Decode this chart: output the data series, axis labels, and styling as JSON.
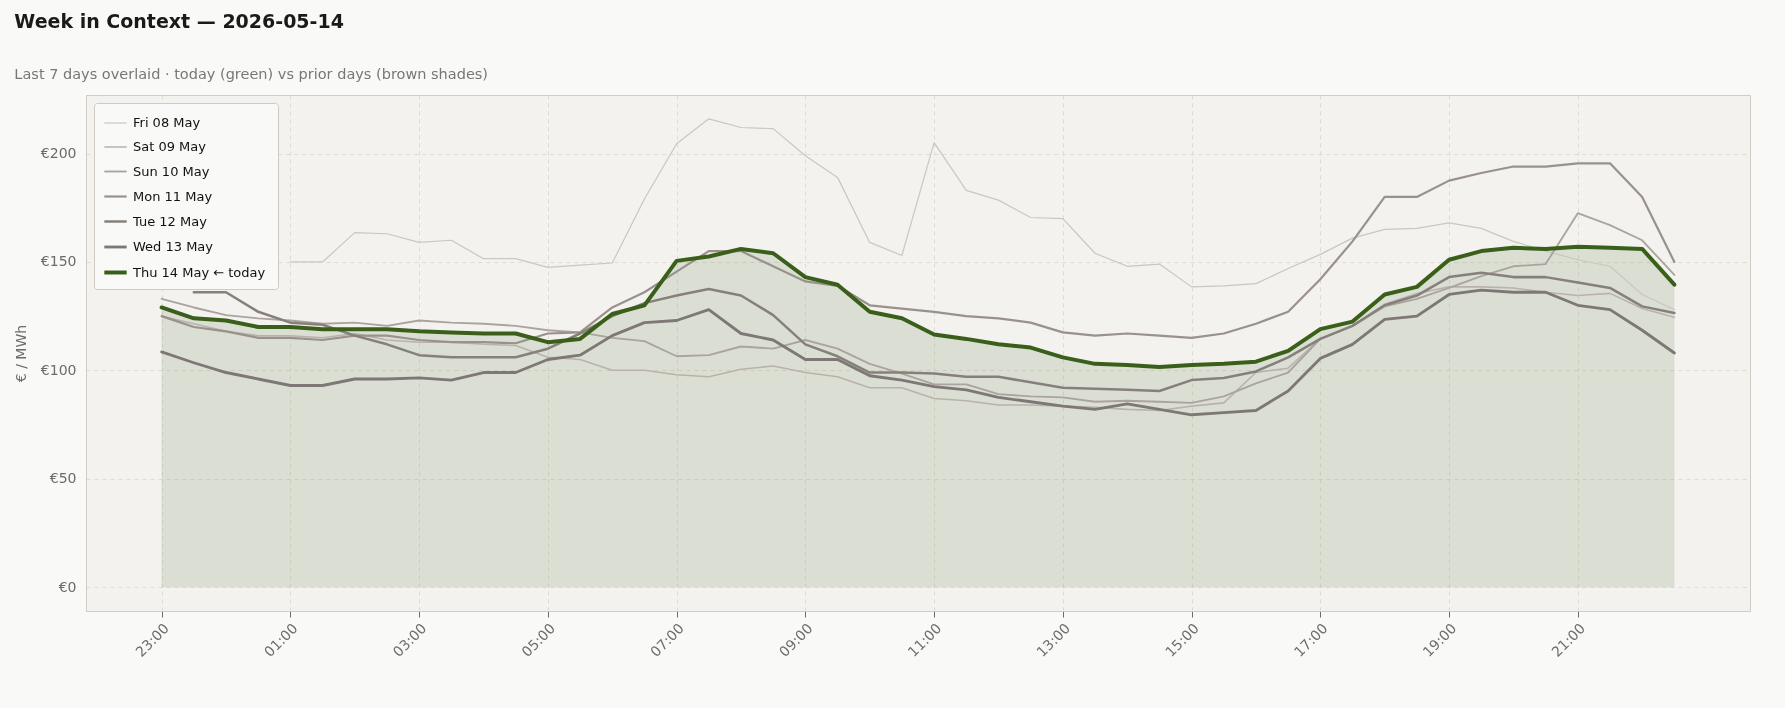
{
  "chart_data": {
    "type": "line",
    "title": "Week in Context — 2026-05-14",
    "subtitle": "Last 7 days overlaid  ·  today (green) vs prior days (brown shades)",
    "ylabel": "€ / MWh",
    "categories": [
      "23:00",
      null,
      null,
      null,
      "01:00",
      null,
      null,
      null,
      "03:00",
      null,
      null,
      null,
      "05:00",
      null,
      null,
      null,
      "07:00",
      null,
      null,
      null,
      "09:00",
      null,
      null,
      null,
      "11:00",
      null,
      null,
      null,
      "13:00",
      null,
      null,
      null,
      "15:00",
      null,
      null,
      null,
      "17:00",
      null,
      null,
      null,
      "19:00",
      null,
      null,
      null,
      "21:00",
      null,
      null,
      null
    ],
    "ylim": [
      -11,
      227
    ],
    "yticks": [
      {
        "value": 0,
        "label": "€0"
      },
      {
        "value": 50,
        "label": "€50"
      },
      {
        "value": 100,
        "label": "€100"
      },
      {
        "value": 150,
        "label": "€150"
      },
      {
        "value": 200,
        "label": "€200"
      }
    ],
    "grid": true,
    "legend": "top left",
    "series": [
      {
        "name": "Fri 08 May",
        "color": "#cbc6c0",
        "values": [
          null,
          null,
          null,
          null,
          150,
          150,
          163.5,
          163,
          159,
          160,
          151.5,
          151.5,
          147.5,
          148.5,
          149.5,
          179,
          204.5,
          216,
          212,
          211.5,
          199,
          189,
          159,
          153,
          205,
          183,
          178.5,
          170.5,
          170,
          154,
          148,
          149,
          138.5,
          139,
          140,
          147,
          153.5,
          161,
          165,
          165.5,
          168,
          165.5,
          159.5,
          155,
          151,
          148,
          135,
          128
        ]
      },
      {
        "name": "Sat 09 May",
        "color": "#b9b2ac",
        "values": [
          125,
          121.5,
          118,
          116,
          116,
          115,
          117,
          114,
          113,
          113,
          112,
          111.5,
          106,
          105,
          100,
          100,
          98,
          97,
          100.5,
          102,
          99,
          97,
          92,
          92,
          87,
          86,
          84,
          84,
          83.5,
          83,
          82,
          81.5,
          83.5,
          85,
          99,
          101,
          114.5,
          120.5,
          130.5,
          135.5,
          138.5,
          138.5,
          138,
          136,
          134.5,
          135.5,
          128.5,
          124.5
        ]
      },
      {
        "name": "Sun 10 May",
        "color": "#aba39e",
        "values": [
          133,
          129,
          125.5,
          124,
          123,
          121.5,
          122,
          120.5,
          123,
          122,
          121.5,
          120.5,
          118.5,
          117.5,
          115,
          113.5,
          106.5,
          107,
          111,
          110,
          114,
          110,
          103,
          98.5,
          93.5,
          93.5,
          89,
          88,
          87.5,
          85.5,
          86,
          85.5,
          85,
          88,
          94,
          99,
          114.5,
          120.5,
          129.5,
          133,
          138,
          143.5,
          148,
          149,
          172.5,
          167,
          160,
          144
        ]
      },
      {
        "name": "Mon 11 May",
        "color": "#9a918c",
        "values": [
          125,
          120,
          118,
          115,
          115,
          114,
          116,
          116,
          114,
          113,
          113,
          112.5,
          117,
          117.5,
          129,
          136,
          145.5,
          155,
          155,
          148,
          141,
          139,
          130,
          128.5,
          127,
          125,
          124,
          122,
          117.5,
          116,
          117,
          116,
          115,
          117,
          121.5,
          127,
          142,
          159.5,
          180,
          180,
          187.5,
          191,
          194,
          194,
          195.5,
          195.5,
          180,
          150
        ]
      },
      {
        "name": "Tue 12 May",
        "color": "#86807c",
        "values": [
          null,
          136,
          136,
          127,
          122,
          121,
          116,
          112,
          107,
          106,
          106,
          106,
          110,
          117,
          125,
          131,
          134.5,
          137.5,
          134.5,
          125.5,
          112,
          106.5,
          99,
          99,
          98.5,
          97,
          97,
          94.5,
          92,
          91.5,
          91,
          90.5,
          95.5,
          96.5,
          99.5,
          106,
          114.5,
          120.5,
          130,
          134.5,
          143,
          145,
          143,
          143,
          140.5,
          138,
          129.5,
          126.5
        ]
      },
      {
        "name": "Wed 13 May",
        "color": "#7d7875",
        "values": [
          108.5,
          103.5,
          99,
          96,
          93,
          93,
          96,
          96,
          96.5,
          95.5,
          99,
          99,
          105,
          107,
          116,
          122,
          123,
          128,
          117,
          114,
          105,
          105,
          97.5,
          95.5,
          92.5,
          91,
          87.5,
          85.5,
          83.5,
          82,
          84.5,
          82,
          79.5,
          80.5,
          81.5,
          90.5,
          105.5,
          112,
          123.5,
          125,
          135,
          137,
          136,
          136,
          130,
          128,
          118.5,
          108
        ]
      },
      {
        "name": "Thu 14 May  ← today",
        "color": "#3a5f1a",
        "type": "area",
        "values": [
          129,
          124,
          123,
          120,
          120,
          119,
          119,
          119,
          118,
          117.5,
          117,
          117,
          113,
          114.5,
          126,
          130,
          150.5,
          152.5,
          156,
          154,
          143,
          139.5,
          127,
          124,
          116.5,
          114.5,
          112,
          110.5,
          106,
          103,
          102.5,
          101.5,
          102.5,
          103,
          104,
          109,
          119,
          122.5,
          135,
          138.5,
          151,
          155,
          156.5,
          156,
          157,
          156.5,
          156,
          139.5
        ]
      }
    ]
  }
}
